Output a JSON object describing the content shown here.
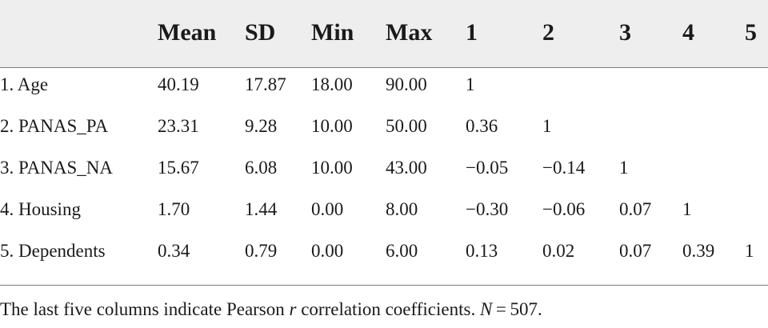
{
  "table": {
    "headers": [
      "",
      "Mean",
      "SD",
      "Min",
      "Max",
      "1",
      "2",
      "3",
      "4",
      "5"
    ],
    "rows": [
      [
        "1. Age",
        "40.19",
        "17.87",
        "18.00",
        "90.00",
        "1",
        "",
        "",
        "",
        ""
      ],
      [
        "2. PANAS_PA",
        "23.31",
        "9.28",
        "10.00",
        "50.00",
        "0.36",
        "1",
        "",
        "",
        ""
      ],
      [
        "3. PANAS_NA",
        "15.67",
        "6.08",
        "10.00",
        "43.00",
        "−0.05",
        "−0.14",
        "1",
        "",
        ""
      ],
      [
        "4. Housing",
        "1.70",
        "1.44",
        "0.00",
        "8.00",
        "−0.30",
        "−0.06",
        "0.07",
        "1",
        ""
      ],
      [
        "5. Dependents",
        "0.34",
        "0.79",
        "0.00",
        "6.00",
        "0.13",
        "0.02",
        "0.07",
        "0.39",
        "1"
      ]
    ]
  },
  "note": {
    "text_before_r": "The last five columns indicate Pearson ",
    "r": "r",
    "text_after_r": " correlation coefficients. ",
    "n_label": "N",
    "n_value": " = 507."
  }
}
